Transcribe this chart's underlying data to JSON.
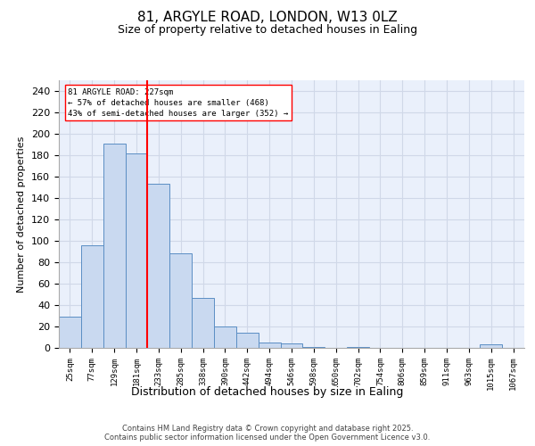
{
  "title_line1": "81, ARGYLE ROAD, LONDON, W13 0LZ",
  "title_line2": "Size of property relative to detached houses in Ealing",
  "xlabel": "Distribution of detached houses by size in Ealing",
  "ylabel": "Number of detached properties",
  "bar_labels": [
    "25sqm",
    "77sqm",
    "129sqm",
    "181sqm",
    "233sqm",
    "285sqm",
    "338sqm",
    "390sqm",
    "442sqm",
    "494sqm",
    "546sqm",
    "598sqm",
    "650sqm",
    "702sqm",
    "754sqm",
    "806sqm",
    "859sqm",
    "911sqm",
    "963sqm",
    "1015sqm",
    "1067sqm"
  ],
  "bar_values": [
    29,
    96,
    191,
    182,
    153,
    88,
    47,
    20,
    14,
    5,
    4,
    1,
    0,
    1,
    0,
    0,
    0,
    0,
    0,
    3,
    0
  ],
  "bar_color": "#c9d9f0",
  "bar_edge_color": "#5b8ec4",
  "vline_color": "red",
  "annotation_text": "81 ARGYLE ROAD: 227sqm\n← 57% of detached houses are smaller (468)\n43% of semi-detached houses are larger (352) →",
  "annotation_box_color": "white",
  "annotation_box_edge_color": "red",
  "ylim": [
    0,
    250
  ],
  "yticks": [
    0,
    20,
    40,
    60,
    80,
    100,
    120,
    140,
    160,
    180,
    200,
    220,
    240
  ],
  "grid_color": "#d0d8e8",
  "bg_color": "#eaf0fb",
  "footer_line1": "Contains HM Land Registry data © Crown copyright and database right 2025.",
  "footer_line2": "Contains public sector information licensed under the Open Government Licence v3.0."
}
